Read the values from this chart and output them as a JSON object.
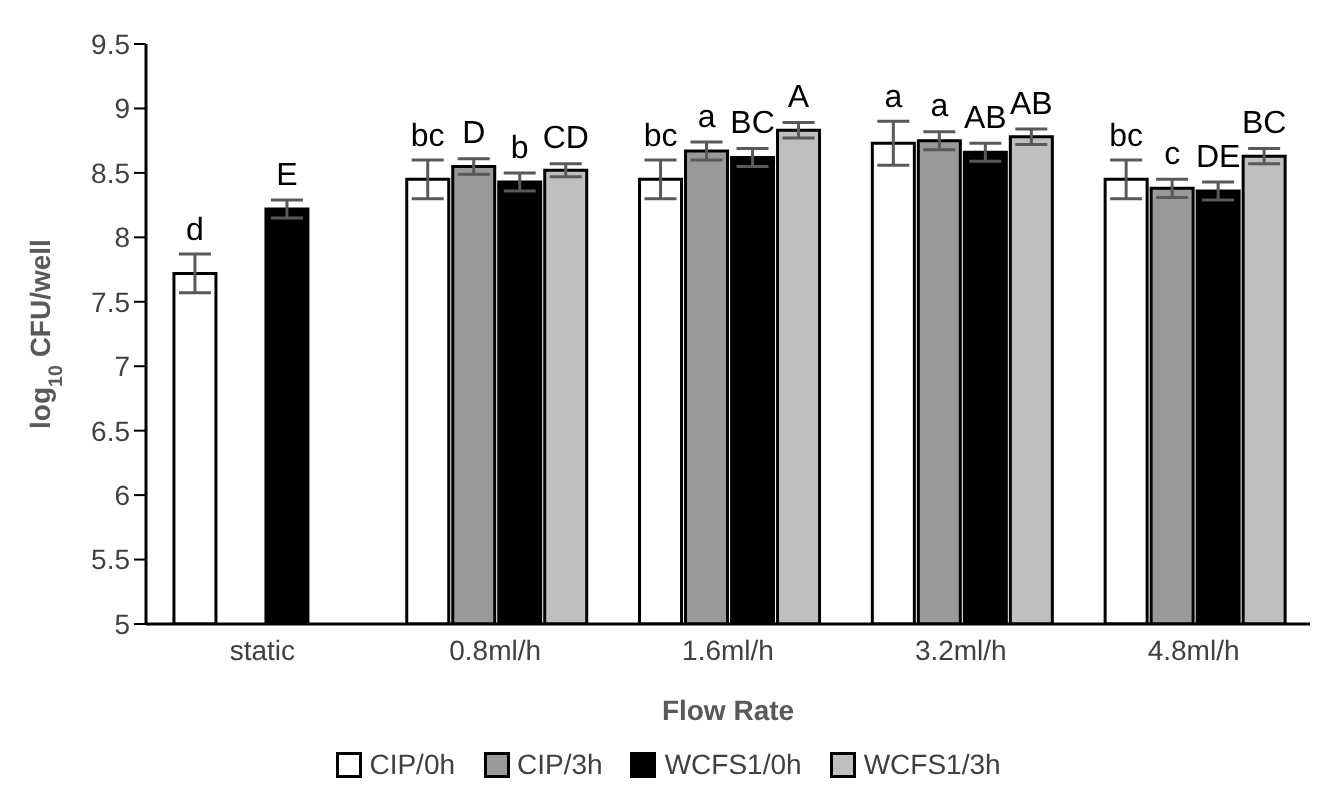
{
  "chart_data": {
    "type": "bar",
    "xlabel": "Flow Rate",
    "ylabel": "log$_{10}$ CFU/well",
    "categories": [
      "static",
      "0.8ml/h",
      "1.6ml/h",
      "3.2ml/h",
      "4.8ml/h"
    ],
    "ylim": [
      5,
      9.5
    ],
    "yticks": [
      5,
      5.5,
      6,
      6.5,
      7,
      7.5,
      8,
      8.5,
      9,
      9.5
    ],
    "grid": false,
    "legend": "bottom",
    "series": [
      {
        "name": "CIP/0h",
        "color": "#ffffff",
        "values": [
          7.72,
          8.45,
          8.45,
          8.73,
          8.45
        ],
        "errors": [
          0.15,
          0.15,
          0.15,
          0.17,
          0.15
        ],
        "value_labels": [
          "d",
          "bc",
          "bc",
          "a",
          "bc"
        ]
      },
      {
        "name": "CIP/3h",
        "color": "#999999",
        "values": [
          null,
          8.55,
          8.67,
          8.75,
          8.38
        ],
        "errors": [
          null,
          0.06,
          0.07,
          0.07,
          0.07
        ],
        "value_labels": [
          null,
          "D",
          "a",
          "a",
          "c"
        ]
      },
      {
        "name": "WCFS1/0h",
        "color": "#000000",
        "values": [
          8.22,
          8.43,
          8.62,
          8.66,
          8.36
        ],
        "errors": [
          0.07,
          0.07,
          0.07,
          0.07,
          0.07
        ],
        "value_labels": [
          "E",
          "b",
          "BC",
          "AB",
          "DE"
        ]
      },
      {
        "name": "WCFS1/3h",
        "color": "#bfbfbf",
        "values": [
          null,
          8.52,
          8.83,
          8.78,
          8.63
        ],
        "errors": [
          null,
          0.05,
          0.06,
          0.06,
          0.06
        ],
        "value_labels": [
          null,
          "CD",
          "A",
          "AB",
          "BC"
        ]
      }
    ]
  }
}
